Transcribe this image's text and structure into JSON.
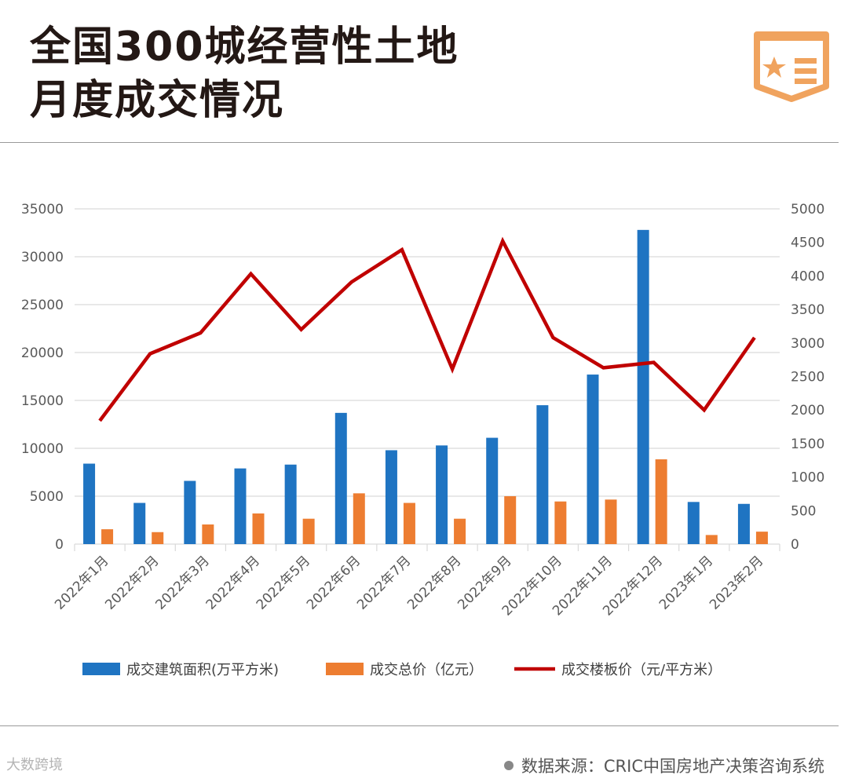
{
  "header": {
    "title_line1": "全国300城经营性土地",
    "title_line2": "月度成交情况",
    "logo_icon": "star-report-badge-icon"
  },
  "colors": {
    "area": "#1f74c2",
    "price": "#ed7d31",
    "line": "#c00000",
    "accent": "#f0a35e",
    "grid": "#d9d9d9"
  },
  "chart_data": {
    "type": "bar",
    "categories": [
      "2022年1月",
      "2022年2月",
      "2022年3月",
      "2022年4月",
      "2022年5月",
      "2022年6月",
      "2022年7月",
      "2022年8月",
      "2022年9月",
      "2022年10月",
      "2022年11月",
      "2022年12月",
      "2023年1月",
      "2023年2月"
    ],
    "series": [
      {
        "name": "成交建筑面积(万平方米)",
        "type": "bar",
        "axis": "left",
        "values": [
          8400,
          4300,
          6600,
          7900,
          8300,
          13700,
          9800,
          10300,
          11100,
          14500,
          17700,
          32800,
          4400,
          4200
        ]
      },
      {
        "name": "成交总价（亿元）",
        "type": "bar",
        "axis": "left",
        "values": [
          1550,
          1250,
          2050,
          3200,
          2650,
          5300,
          4300,
          2650,
          5000,
          4450,
          4650,
          8850,
          950,
          1300
        ]
      },
      {
        "name": "成交楼板价（元/平方米）",
        "type": "line",
        "axis": "right",
        "values": [
          1840,
          2840,
          3150,
          4030,
          3200,
          3910,
          4390,
          2610,
          4520,
          3080,
          2630,
          2710,
          2000,
          3080
        ]
      }
    ],
    "ylim_left": [
      0,
      35000
    ],
    "ylim_right": [
      0,
      5000
    ],
    "yticks_left": [
      "0",
      "5000",
      "10000",
      "15000",
      "20000",
      "25000",
      "30000",
      "35000"
    ],
    "yticks_right": [
      "0",
      "500",
      "1000",
      "1500",
      "2000",
      "2500",
      "3000",
      "3500",
      "4000",
      "4500",
      "5000"
    ],
    "grid": true,
    "legend_position": "bottom"
  },
  "footer": {
    "brand": "大数跨境",
    "source": "数据来源：CRIC中国房地产决策咨询系统"
  }
}
